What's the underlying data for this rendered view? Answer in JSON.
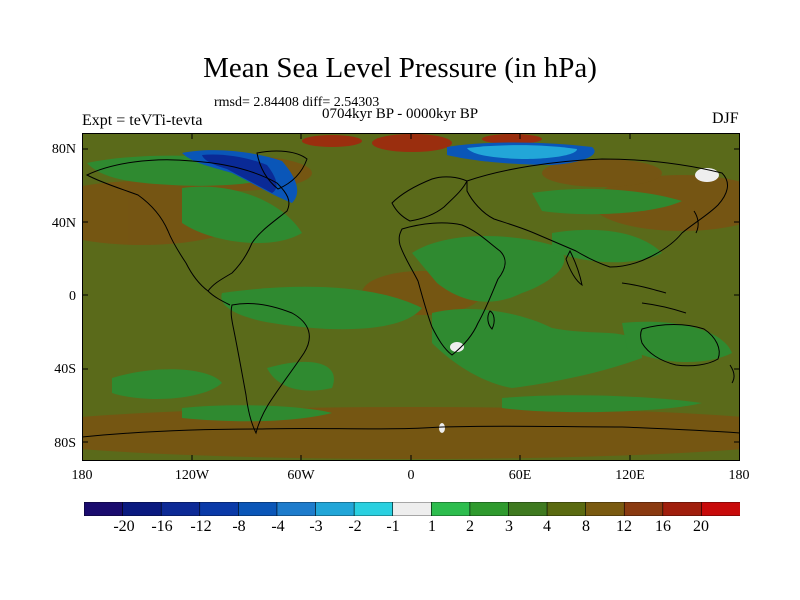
{
  "figure": {
    "title": "Mean Sea Level Pressure (in hPa)",
    "stats": "rmsd= 2.84408 diff= 2.54303",
    "period": "0704kyr BP - 0000kyr BP",
    "experiment": "Expt = teVTi-tevta",
    "season": "DJF"
  },
  "axes": {
    "y_ticks": [
      "80N",
      "40N",
      "0",
      "40S",
      "80S"
    ],
    "x_ticks": [
      "180",
      "120W",
      "60W",
      "0",
      "60E",
      "120E",
      "180"
    ]
  },
  "colorbar": {
    "labels": [
      "-20",
      "-16",
      "-12",
      "-8",
      "-4",
      "-3",
      "-2",
      "-1",
      "1",
      "2",
      "3",
      "4",
      "8",
      "12",
      "16",
      "20"
    ],
    "colors": [
      "#1a0b6e",
      "#0a1a80",
      "#0d2a96",
      "#0a3aa8",
      "#0a56b8",
      "#1e7ccc",
      "#22a6d8",
      "#2ad0e0",
      "#eeeeee",
      "#2dbd4e",
      "#2f9a2e",
      "#3f7a20",
      "#5a6a10",
      "#7a5a10",
      "#8a3a10",
      "#a01e0c",
      "#c80a0a"
    ]
  },
  "map_colors": {
    "background_positive": "#5a6a1a",
    "weak_positive": "#2f8a30",
    "neutral": "#eeeeee",
    "strong_positive": "#7a5212",
    "very_strong": "#9a2e0e",
    "negative": "#0a4aa8",
    "coastline": "#000000"
  }
}
